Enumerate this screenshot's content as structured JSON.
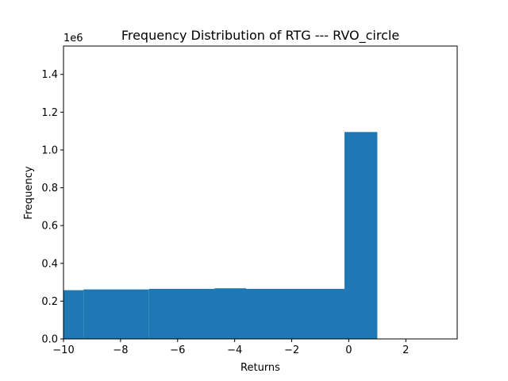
{
  "chart_data": {
    "type": "bar",
    "title": "Frequency Distribution of RTG --- RVO_circle",
    "xlabel": "Returns",
    "ylabel": "Frequency",
    "y_offset_label": "1e6",
    "xlim": [
      -10,
      3.8
    ],
    "ylim": [
      0,
      1.55
    ],
    "x_ticks": [
      -10,
      -8,
      -6,
      -4,
      -2,
      0,
      2
    ],
    "x_tick_labels": [
      "−10",
      "−8",
      "−6",
      "−4",
      "−2",
      "0",
      "2"
    ],
    "y_ticks": [
      0,
      0.2,
      0.4,
      0.6,
      0.8,
      1.0,
      1.2,
      1.4
    ],
    "y_tick_labels": [
      "0.0",
      "0.2",
      "0.4",
      "0.6",
      "0.8",
      "1.0",
      "1.2",
      "1.4"
    ],
    "bar_color": "#1f77b4",
    "bins": [
      {
        "x0": -10.0,
        "x1": -9.3,
        "value": 0.258
      },
      {
        "x0": -9.3,
        "x1": -7.0,
        "value": 0.262
      },
      {
        "x0": -7.0,
        "x1": -4.7,
        "value": 0.265
      },
      {
        "x0": -4.7,
        "x1": -3.6,
        "value": 0.268
      },
      {
        "x0": -3.6,
        "x1": -0.15,
        "value": 0.265
      },
      {
        "x0": -0.15,
        "x1": 1.0,
        "value": 1.095
      }
    ],
    "grid": false,
    "legend": "none"
  }
}
